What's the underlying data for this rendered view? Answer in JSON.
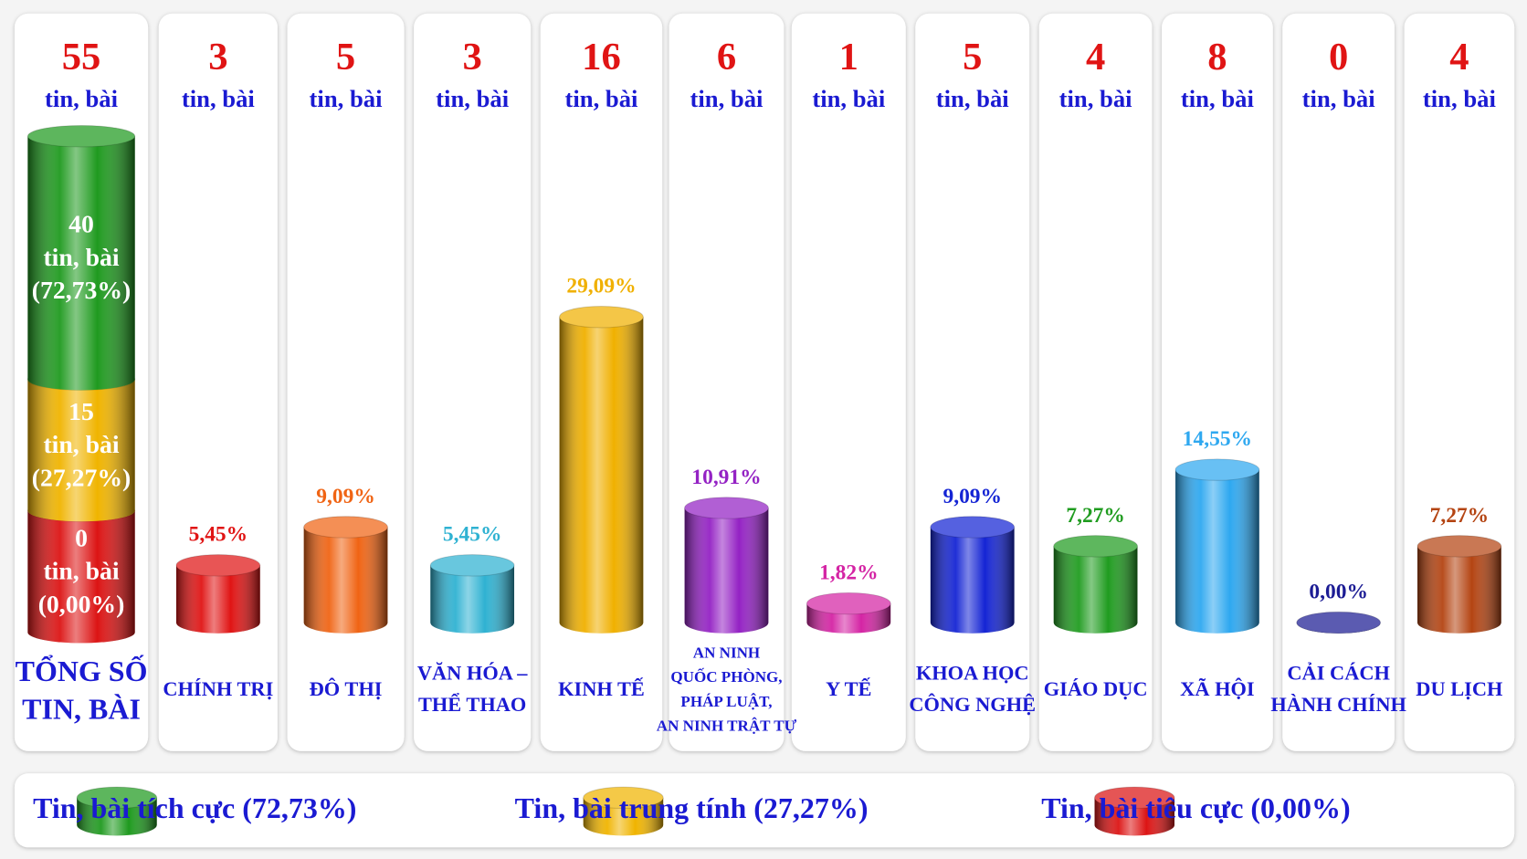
{
  "chart_data": {
    "type": "bar",
    "unit": "tin, bài",
    "total": {
      "count": 55,
      "label": [
        "TỔNG SỐ",
        "TIN, BÀI"
      ],
      "segments": [
        {
          "name": "Tin, bài tích cực (72,73%)",
          "value": 40,
          "percent": 72.73,
          "percent_label": "(72,73%)",
          "color": "#1f9a1f"
        },
        {
          "name": "Tin, bài trung tính (27,27%)",
          "value": 15,
          "percent": 27.27,
          "percent_label": "(27,27%)",
          "color": "#f0b400"
        },
        {
          "name": "Tin, bài tiêu cực (0,00%)",
          "value": 0,
          "percent": 0,
          "percent_label": "(0,00%)",
          "color": "#dc1414"
        }
      ]
    },
    "categories": [
      [
        "CHÍNH TRỊ"
      ],
      [
        "ĐÔ THỊ"
      ],
      [
        "VĂN HÓA –",
        "THỂ THAO"
      ],
      [
        "KINH TẾ"
      ],
      [
        "AN NINH",
        "QUỐC PHÒNG,",
        "PHÁP LUẬT,",
        "AN NINH TRẬT TỰ"
      ],
      [
        "Y TẾ"
      ],
      [
        "KHOA HỌC",
        "CÔNG NGHỆ"
      ],
      [
        "GIÁO DỤC"
      ],
      [
        "XÃ HỘI"
      ],
      [
        "CẢI CÁCH",
        "HÀNH CHÍNH"
      ],
      [
        "DU LỊCH"
      ]
    ],
    "counts": [
      3,
      5,
      3,
      16,
      6,
      1,
      5,
      4,
      8,
      0,
      4
    ],
    "values": [
      5.45,
      9.09,
      5.45,
      29.09,
      10.91,
      1.82,
      9.09,
      7.27,
      14.55,
      0,
      7.27
    ],
    "value_labels": [
      "5,45%",
      "9,09%",
      "5,45%",
      "29,09%",
      "10,91%",
      "1,82%",
      "9,09%",
      "7,27%",
      "14,55%",
      "0,00%",
      "7,27%"
    ],
    "colors": [
      "#e01414",
      "#f06414",
      "#2fb2d2",
      "#f0b000",
      "#9422c4",
      "#d424a4",
      "#1424d4",
      "#209c20",
      "#2ea8f0",
      "#1c1c94",
      "#b44412"
    ]
  }
}
